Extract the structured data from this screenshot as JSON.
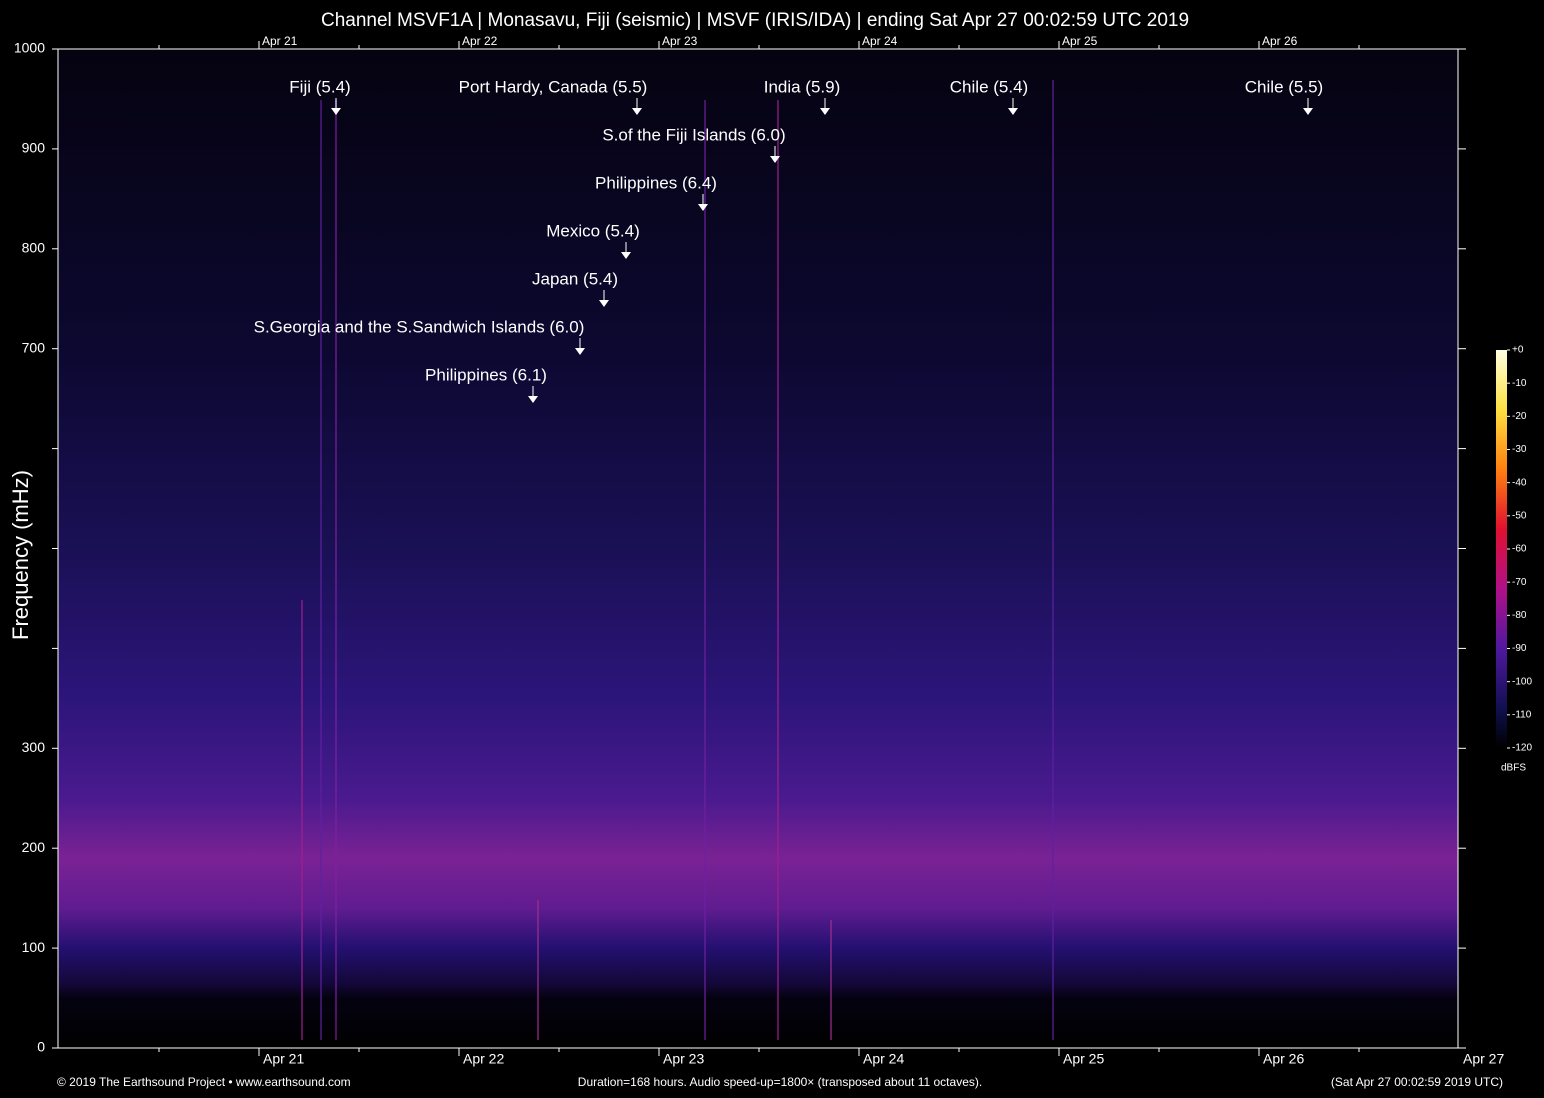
{
  "chart_data": {
    "type": "spectrogram",
    "title": "Channel MSVF1A | Monasavu, Fiji (seismic) | MSVF (IRIS/IDA) | ending Sat Apr 27 00:02:59 UTC 2019",
    "y_label": "Frequency (mHz)",
    "ylim": [
      0,
      1000
    ],
    "yticks": [
      0,
      100,
      200,
      300,
      700,
      800,
      900,
      1000
    ],
    "unlabeled_yticks": [
      400,
      500,
      600
    ],
    "x_tick_labels": [
      "Apr 21",
      "Apr 22",
      "Apr 23",
      "Apr 24",
      "Apr 25",
      "Apr 26",
      "Apr 27"
    ],
    "annotations": [
      "Fiji (5.4)",
      "Port Hardy, Canada (5.5)",
      "India (5.9)",
      "Chile (5.4)",
      "Chile (5.5)",
      "S.of the Fiji Islands (6.0)",
      "Philippines (6.4)",
      "Mexico (5.4)",
      "Japan (5.4)",
      "S.Georgia and the S.Sandwich Islands (6.0)",
      "Philippines (6.1)"
    ],
    "colorbar": {
      "label": "dBFS",
      "lim": [
        -120,
        0
      ],
      "ticks": [
        {
          "value": 0,
          "label": "+0"
        },
        -10,
        -20,
        -30,
        -40,
        -50,
        -60,
        -70,
        -80,
        -90,
        -100,
        -110,
        -120
      ]
    },
    "footer": {
      "left": "© 2019 The Earthsound Project • www.earthsound.com",
      "center": "Duration=168 hours. Audio speed-up=1800× (transposed about 11 octaves).",
      "right": "(Sat Apr 27 00:02:59 2019 UTC)"
    }
  }
}
